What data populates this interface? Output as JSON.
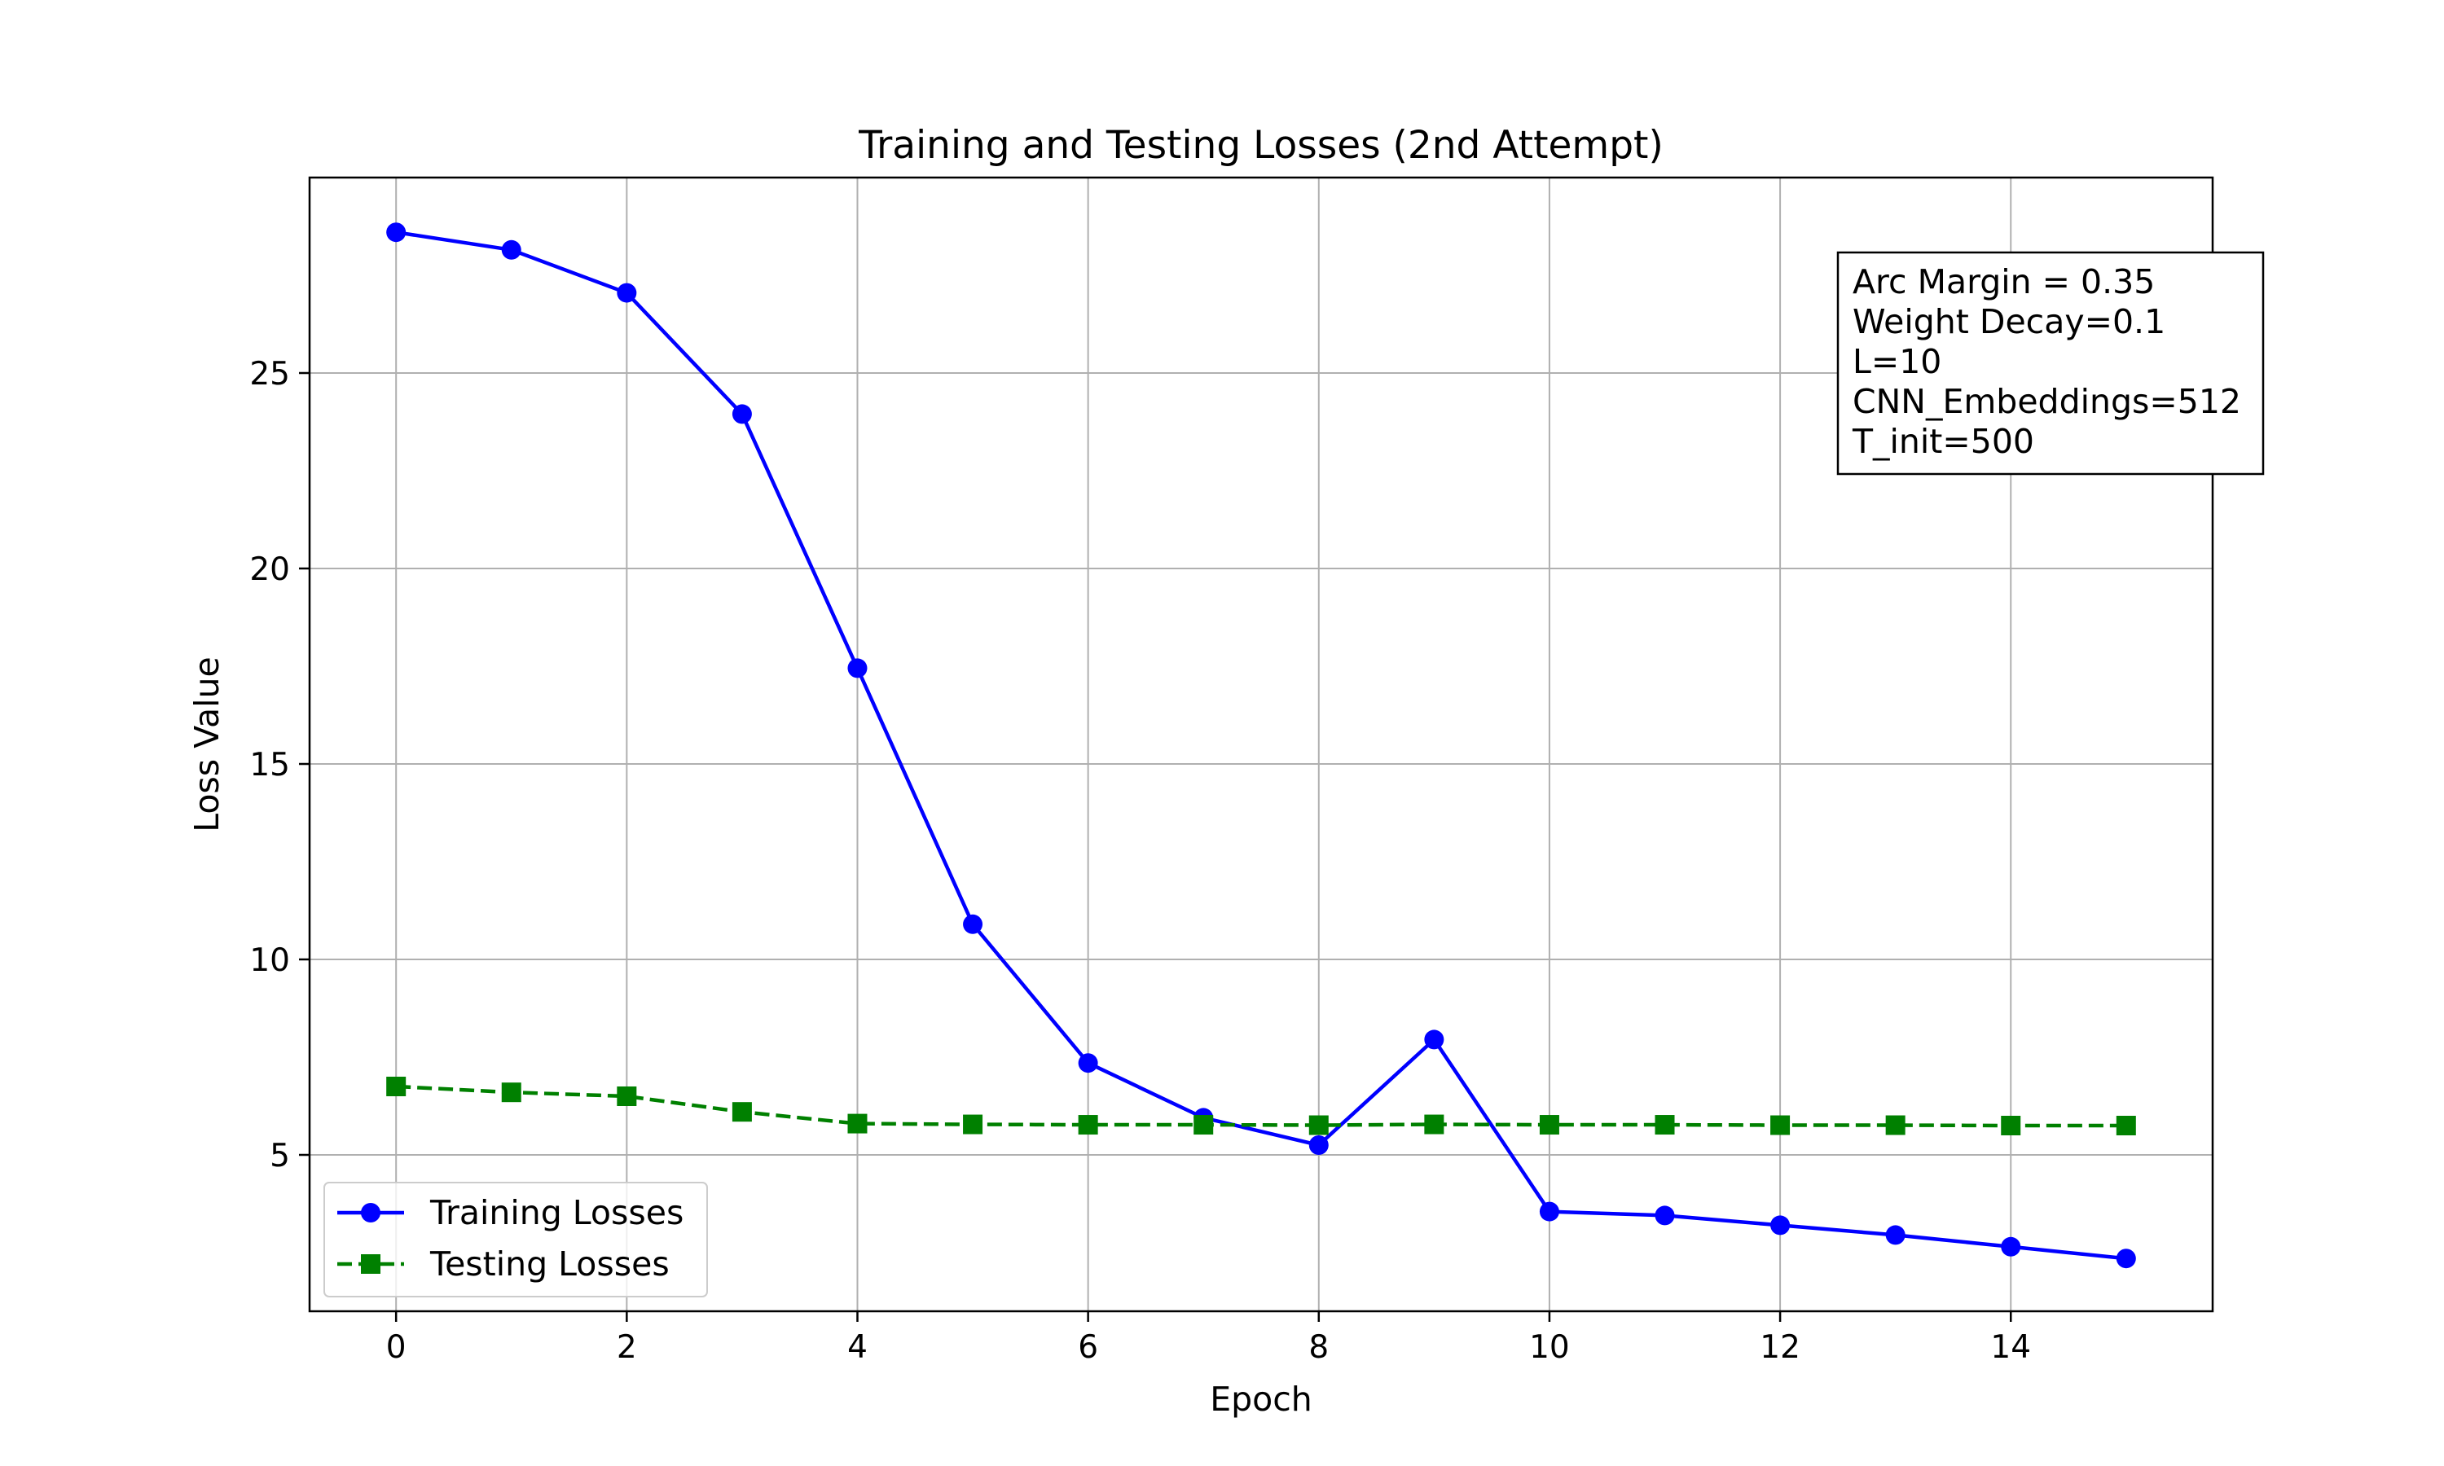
{
  "chart_data": {
    "type": "line",
    "title": "Training and Testing Losses (2nd Attempt)",
    "xlabel": "Epoch",
    "ylabel": "Loss Value",
    "xlim": [
      -0.75,
      15.75
    ],
    "ylim": [
      1.0,
      30.0
    ],
    "xticks": [
      0,
      2,
      4,
      6,
      8,
      10,
      12,
      14
    ],
    "yticks": [
      5,
      10,
      15,
      20,
      25
    ],
    "grid": true,
    "legend_position": "lower-left",
    "x": [
      0,
      1,
      2,
      3,
      4,
      5,
      6,
      7,
      8,
      9,
      10,
      11,
      12,
      13,
      14,
      15
    ],
    "series": [
      {
        "name": "Training Losses",
        "color": "#0000ff",
        "linestyle": "solid",
        "marker": "circle",
        "values": [
          28.6,
          28.15,
          27.05,
          23.95,
          17.45,
          10.9,
          7.35,
          5.95,
          5.25,
          7.95,
          3.55,
          3.45,
          3.2,
          2.95,
          2.65,
          2.35
        ]
      },
      {
        "name": "Testing Losses",
        "color": "#008000",
        "linestyle": "dashed",
        "marker": "square",
        "values": [
          6.75,
          6.6,
          6.5,
          6.1,
          5.8,
          5.78,
          5.77,
          5.77,
          5.76,
          5.78,
          5.77,
          5.77,
          5.76,
          5.76,
          5.75,
          5.75
        ]
      }
    ],
    "annotation": {
      "lines": [
        "Arc Margin = 0.35",
        "Weight Decay=0.1",
        "L=10",
        "CNN_Embeddings=512",
        "T_init=500"
      ],
      "position": "top-right"
    }
  }
}
